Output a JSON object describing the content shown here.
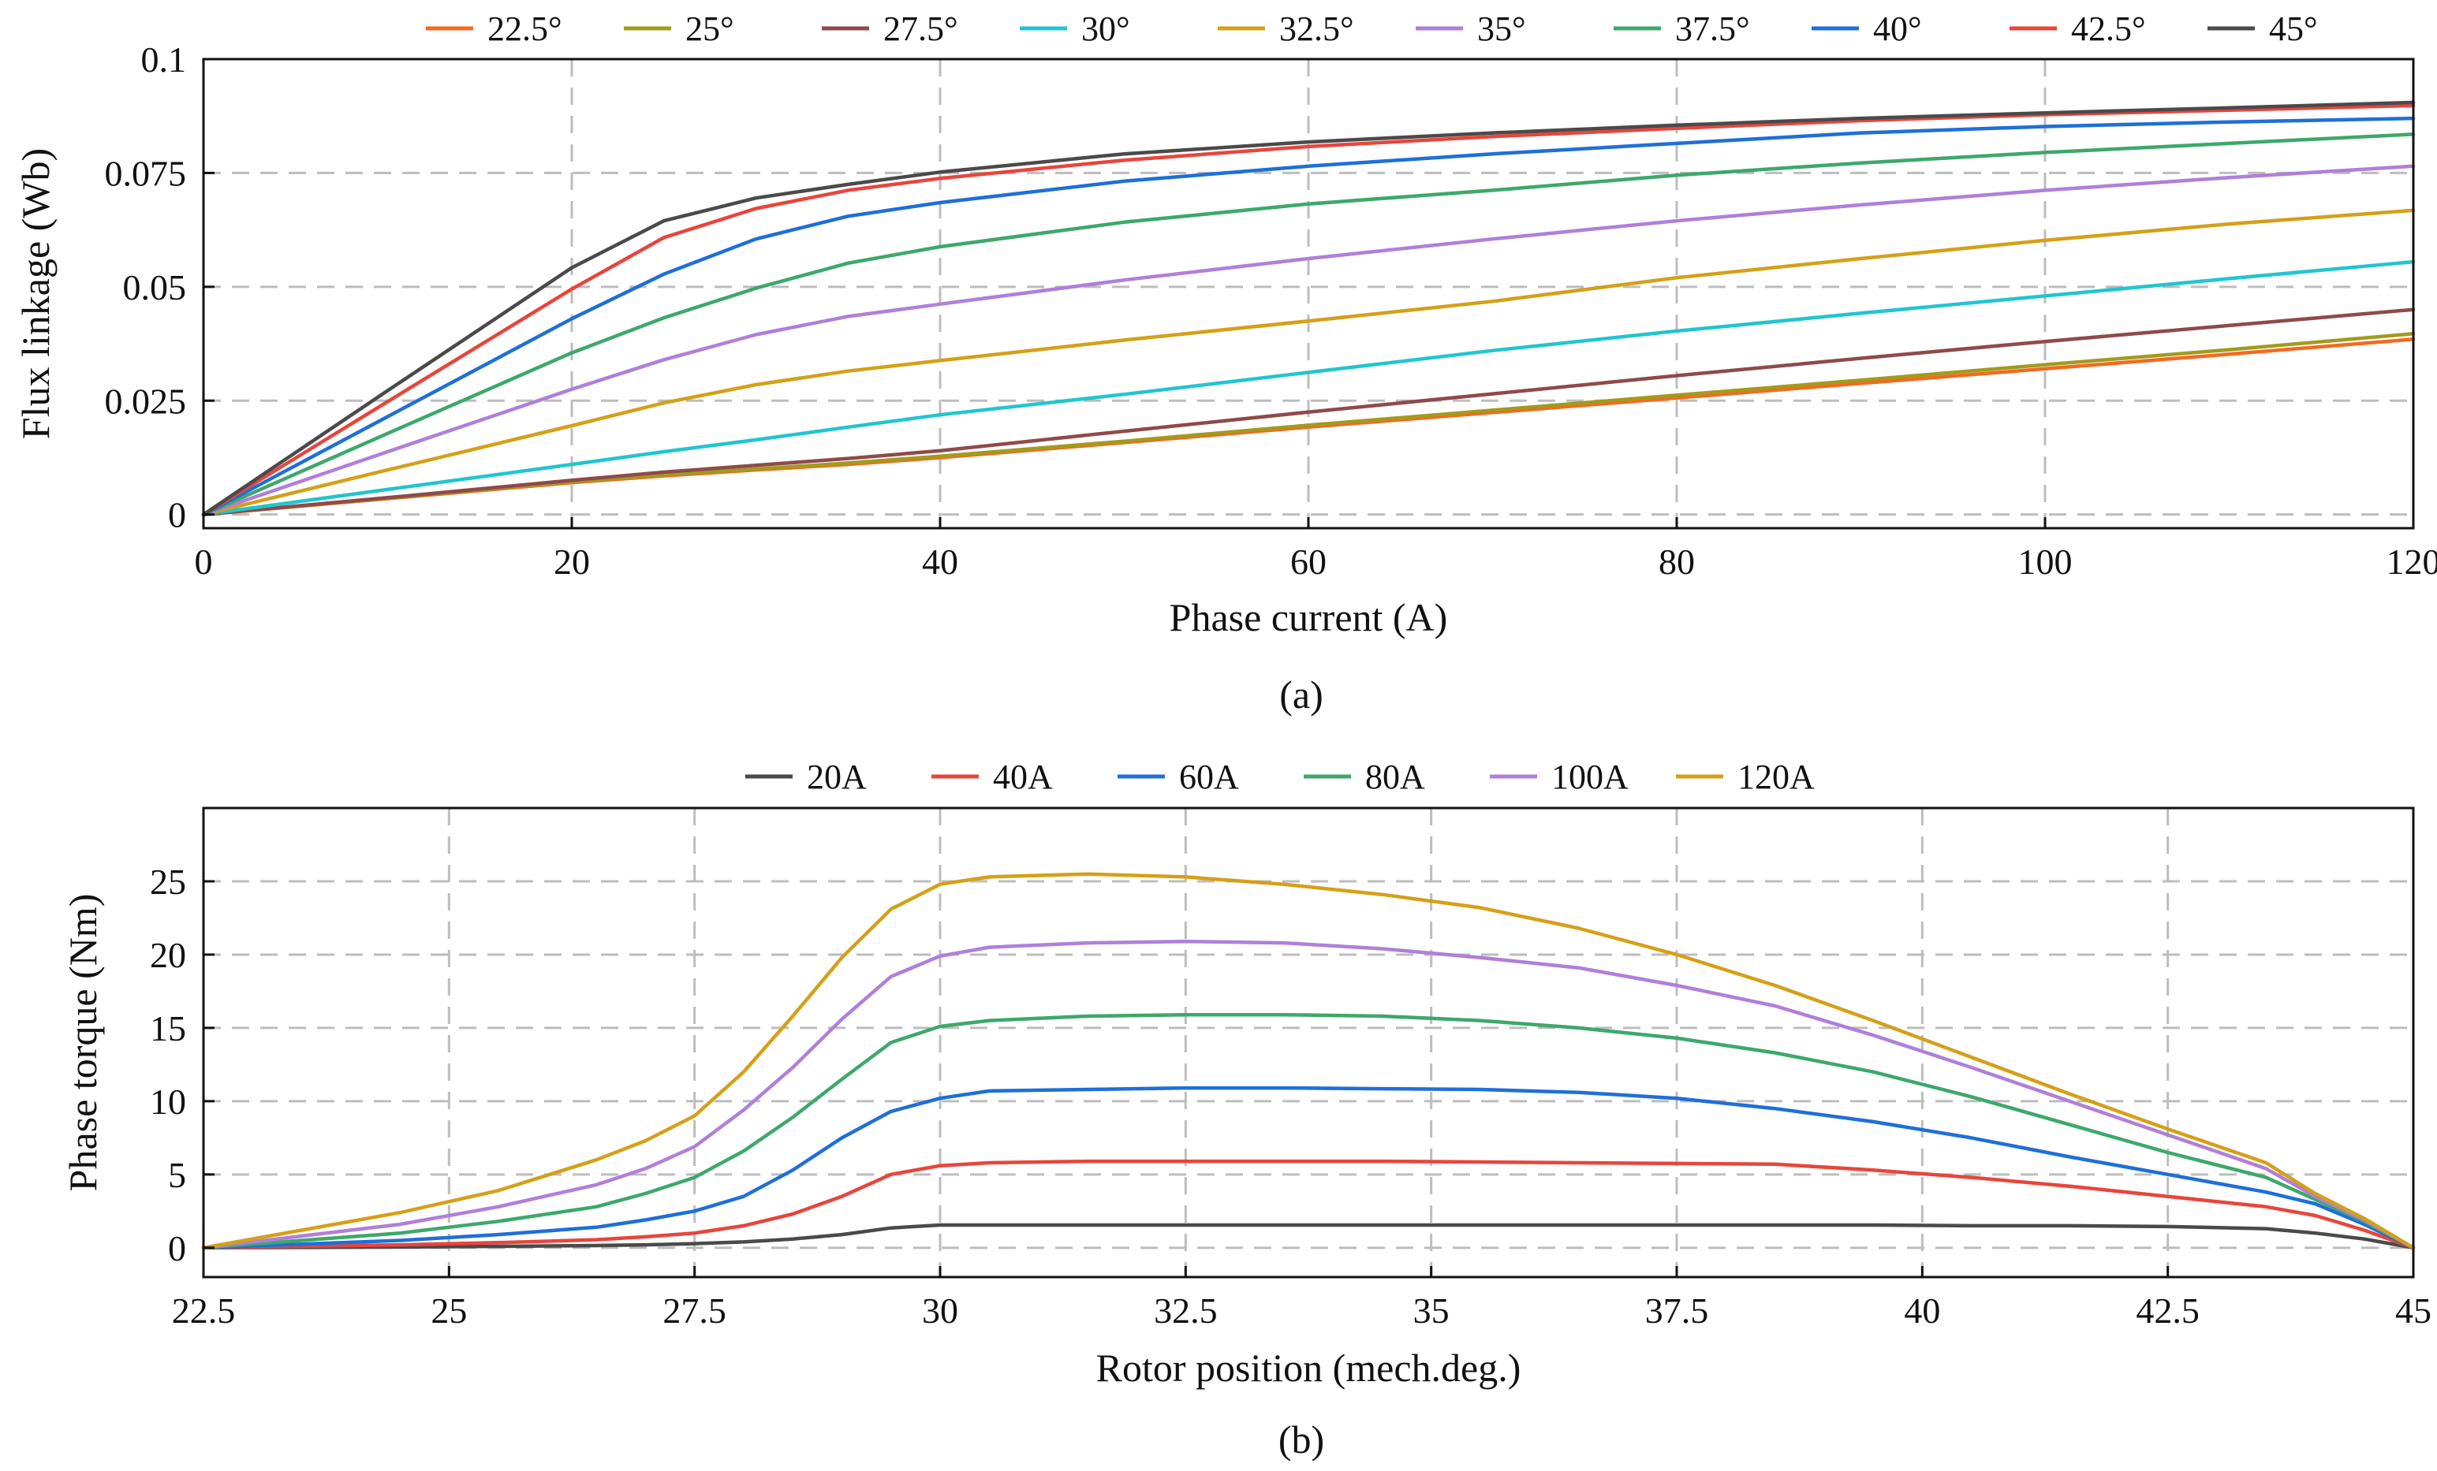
{
  "chart_data": [
    {
      "type": "line",
      "panel": "(a)",
      "caption": "(a)",
      "xlabel": "Phase current (A)",
      "ylabel": "Flux linkage (Wb)",
      "xlim": [
        0,
        120
      ],
      "ylim": [
        -0.003,
        0.1
      ],
      "xticks": [
        0,
        20,
        40,
        60,
        80,
        100,
        120
      ],
      "xtick_labels": [
        "0",
        "20",
        "40",
        "60",
        "80",
        "100",
        "120"
      ],
      "yticks": [
        0,
        0.025,
        0.05,
        0.075,
        0.1
      ],
      "ytick_labels": [
        "0",
        "0.025",
        "0.05",
        "0.075",
        "0.1"
      ],
      "grid": true,
      "legend_position": "top",
      "x": [
        0,
        10,
        20,
        25,
        30,
        35,
        40,
        50,
        60,
        70,
        80,
        90,
        100,
        110,
        120
      ],
      "series": [
        {
          "name": "22.5°",
          "color": "#F26A21",
          "values": [
            0,
            0.0035,
            0.007,
            0.0085,
            0.0098,
            0.011,
            0.0125,
            0.0158,
            0.0192,
            0.0224,
            0.0256,
            0.0288,
            0.032,
            0.0352,
            0.0385
          ]
        },
        {
          "name": "25°",
          "color": "#A39A1C",
          "values": [
            0,
            0.0036,
            0.0072,
            0.0087,
            0.01,
            0.0113,
            0.0128,
            0.0161,
            0.0196,
            0.0229,
            0.0262,
            0.0295,
            0.0329,
            0.0362,
            0.0397
          ]
        },
        {
          "name": "27.5°",
          "color": "#8E4A49",
          "values": [
            0,
            0.0037,
            0.0075,
            0.0093,
            0.0108,
            0.0123,
            0.014,
            0.0183,
            0.0225,
            0.0265,
            0.0305,
            0.0343,
            0.038,
            0.0415,
            0.045
          ]
        },
        {
          "name": "30°",
          "color": "#21C5CF",
          "values": [
            0,
            0.0055,
            0.011,
            0.0138,
            0.0164,
            0.0192,
            0.0219,
            0.0264,
            0.0312,
            0.036,
            0.0403,
            0.0442,
            0.048,
            0.0518,
            0.0555
          ]
        },
        {
          "name": "32.5°",
          "color": "#D4A017",
          "values": [
            0,
            0.0098,
            0.0195,
            0.0245,
            0.0285,
            0.0315,
            0.0338,
            0.0383,
            0.0425,
            0.0468,
            0.052,
            0.0562,
            0.0602,
            0.0638,
            0.0668
          ]
        },
        {
          "name": "35°",
          "color": "#B07FDA",
          "values": [
            0,
            0.0138,
            0.0275,
            0.034,
            0.0395,
            0.0435,
            0.0462,
            0.0515,
            0.0562,
            0.0605,
            0.0645,
            0.068,
            0.0712,
            0.074,
            0.0765
          ]
        },
        {
          "name": "37.5°",
          "color": "#3DA86B",
          "values": [
            0,
            0.0178,
            0.0355,
            0.0432,
            0.0497,
            0.0552,
            0.0588,
            0.0642,
            0.0682,
            0.0712,
            0.0745,
            0.0772,
            0.0795,
            0.0815,
            0.0835
          ]
        },
        {
          "name": "40°",
          "color": "#1E6FD9",
          "values": [
            0,
            0.0215,
            0.043,
            0.0528,
            0.0605,
            0.0655,
            0.0685,
            0.0732,
            0.0765,
            0.0792,
            0.0815,
            0.0838,
            0.0852,
            0.0862,
            0.087
          ]
        },
        {
          "name": "42.5°",
          "color": "#E8453C",
          "values": [
            0,
            0.0248,
            0.0495,
            0.0608,
            0.0672,
            0.0712,
            0.0738,
            0.0778,
            0.0808,
            0.083,
            0.0848,
            0.0865,
            0.0878,
            0.0888,
            0.0898
          ]
        },
        {
          "name": "45°",
          "color": "#4A4A4A",
          "values": [
            0,
            0.0272,
            0.0542,
            0.0645,
            0.0695,
            0.0725,
            0.0752,
            0.0792,
            0.0818,
            0.0838,
            0.0855,
            0.087,
            0.0882,
            0.0893,
            0.0905
          ]
        }
      ]
    },
    {
      "type": "line",
      "panel": "(b)",
      "caption": "(b)",
      "xlabel": "Rotor position (mech.deg.)",
      "ylabel": "Phase torque (Nm)",
      "xlim": [
        22.5,
        45
      ],
      "ylim": [
        -2,
        30
      ],
      "xticks": [
        22.5,
        25,
        27.5,
        30,
        32.5,
        35,
        37.5,
        40,
        42.5,
        45
      ],
      "xtick_labels": [
        "22.5",
        "25",
        "27.5",
        "30",
        "32.5",
        "35",
        "37.5",
        "40",
        "42.5",
        "45"
      ],
      "yticks": [
        0,
        5,
        10,
        15,
        20,
        25
      ],
      "ytick_labels": [
        "0",
        "5",
        "10",
        "15",
        "20",
        "25"
      ],
      "grid": true,
      "legend_position": "top",
      "x": [
        22.5,
        23.5,
        24.5,
        25.5,
        26.5,
        27,
        27.5,
        28,
        28.5,
        29,
        29.5,
        30,
        30.5,
        31.5,
        32.5,
        33.5,
        34.5,
        35.5,
        36.5,
        37.5,
        38.5,
        39.5,
        40.5,
        41.5,
        42.5,
        43.5,
        44,
        44.5,
        45
      ],
      "series": [
        {
          "name": "20A",
          "color": "#4A4A4A",
          "values": [
            0,
            0.02,
            0.05,
            0.1,
            0.15,
            0.2,
            0.28,
            0.4,
            0.6,
            0.9,
            1.35,
            1.55,
            1.55,
            1.55,
            1.55,
            1.55,
            1.55,
            1.55,
            1.55,
            1.55,
            1.55,
            1.55,
            1.5,
            1.5,
            1.45,
            1.3,
            1.0,
            0.6,
            0
          ]
        },
        {
          "name": "40A",
          "color": "#E8453C",
          "values": [
            0,
            0.1,
            0.2,
            0.35,
            0.55,
            0.75,
            1.0,
            1.5,
            2.3,
            3.5,
            5.0,
            5.6,
            5.8,
            5.9,
            5.9,
            5.9,
            5.9,
            5.85,
            5.8,
            5.75,
            5.7,
            5.3,
            4.8,
            4.2,
            3.5,
            2.8,
            2.2,
            1.2,
            0
          ]
        },
        {
          "name": "60A",
          "color": "#1E6FD9",
          "values": [
            0,
            0.25,
            0.5,
            0.9,
            1.4,
            1.9,
            2.5,
            3.5,
            5.3,
            7.5,
            9.3,
            10.2,
            10.7,
            10.8,
            10.9,
            10.9,
            10.85,
            10.8,
            10.6,
            10.2,
            9.5,
            8.6,
            7.5,
            6.2,
            5.0,
            3.8,
            3.0,
            1.6,
            0
          ]
        },
        {
          "name": "80A",
          "color": "#3DA86B",
          "values": [
            0,
            0.5,
            1.0,
            1.8,
            2.8,
            3.7,
            4.8,
            6.6,
            8.9,
            11.5,
            14.0,
            15.1,
            15.5,
            15.8,
            15.9,
            15.9,
            15.8,
            15.5,
            15.0,
            14.3,
            13.3,
            12.0,
            10.3,
            8.4,
            6.5,
            4.8,
            3.3,
            1.8,
            0
          ]
        },
        {
          "name": "100A",
          "color": "#B07FDA",
          "values": [
            0,
            0.8,
            1.6,
            2.8,
            4.3,
            5.4,
            6.9,
            9.4,
            12.3,
            15.6,
            18.5,
            19.9,
            20.5,
            20.8,
            20.9,
            20.8,
            20.4,
            19.8,
            19.1,
            17.9,
            16.5,
            14.5,
            12.3,
            10.0,
            7.7,
            5.4,
            3.5,
            1.9,
            0
          ]
        },
        {
          "name": "120A",
          "color": "#D4A017",
          "values": [
            0,
            1.2,
            2.4,
            3.9,
            6.0,
            7.3,
            9.0,
            12.0,
            15.8,
            19.8,
            23.1,
            24.8,
            25.3,
            25.5,
            25.3,
            24.8,
            24.1,
            23.2,
            21.8,
            20.0,
            17.9,
            15.5,
            13.0,
            10.5,
            8.1,
            5.8,
            3.7,
            2.0,
            0
          ]
        }
      ]
    }
  ]
}
